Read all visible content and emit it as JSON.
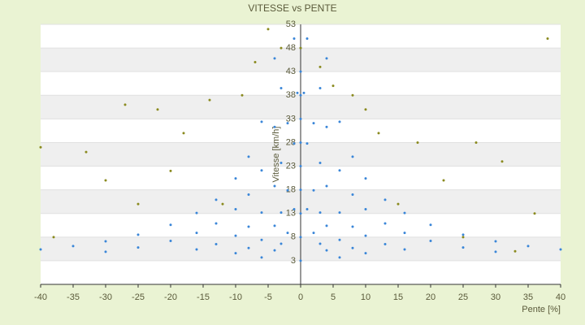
{
  "chart_data": {
    "type": "scatter",
    "title": "VITESSE vs PENTE",
    "xlabel": "Pente [%]",
    "ylabel": "Vitesse [km/h]",
    "xlim": [
      -40,
      40
    ],
    "xticks": [
      -40,
      -35,
      -30,
      -25,
      -20,
      -15,
      -10,
      -5,
      0,
      5,
      10,
      15,
      20,
      25,
      30,
      35,
      40
    ],
    "ylim": [
      -2,
      53
    ],
    "yticks": [
      3,
      8,
      13,
      18,
      23,
      28,
      33,
      38,
      43,
      48,
      53
    ],
    "grid": true,
    "series": [
      {
        "color": "#3a86d8",
        "x": [
          -1,
          -2,
          -3,
          -4,
          -6,
          -0.5,
          -1,
          -2,
          -3,
          -4,
          -6,
          -8,
          -10,
          -1,
          -2,
          -3,
          -4,
          -6,
          -8,
          -10,
          -13,
          -16,
          -3,
          -4,
          -6,
          -8,
          -10,
          -13,
          -16,
          -20,
          -25,
          -30,
          -4,
          -6,
          -8,
          -10,
          -13,
          -16,
          -20,
          -25,
          -30,
          -35,
          -40,
          1,
          2,
          3,
          4,
          6,
          0.5,
          1,
          2,
          3,
          4,
          6,
          8,
          10,
          1,
          2,
          3,
          4,
          6,
          8,
          10,
          13,
          16,
          3,
          4,
          6,
          8,
          10,
          13,
          16,
          20,
          25,
          30,
          4,
          6,
          8,
          10,
          13,
          16,
          20,
          25,
          30,
          35,
          40,
          0,
          0,
          0,
          0,
          0,
          0,
          0,
          0,
          0,
          0
        ],
        "values": [
          13.9,
          8.9,
          6.6,
          5.2,
          3.7,
          38.5,
          27.8,
          17.9,
          13.2,
          10.4,
          7.4,
          5.7,
          4.6,
          50,
          32.1,
          23.7,
          18.8,
          13.2,
          10.2,
          8.3,
          6.5,
          5.4,
          39.5,
          31.3,
          22.1,
          17,
          13.9,
          10.9,
          8.9,
          7.2,
          5.8,
          4.9,
          45.8,
          32.4,
          25,
          20.4,
          15.9,
          13.1,
          10.6,
          8.5,
          7.1,
          6.1,
          5.4,
          13.9,
          8.9,
          6.6,
          5.2,
          3.7,
          38.5,
          27.8,
          17.9,
          13.2,
          10.4,
          7.4,
          5.7,
          4.6,
          50,
          32.1,
          23.7,
          18.8,
          13.2,
          10.2,
          8.3,
          6.5,
          5.4,
          39.5,
          31.3,
          22.1,
          17,
          13.9,
          10.9,
          8.9,
          7.2,
          5.8,
          4.9,
          45.8,
          32.4,
          25,
          20.4,
          15.9,
          13.1,
          10.6,
          8.5,
          7.1,
          6.1,
          5.4,
          3,
          8,
          13,
          18,
          23,
          28,
          33,
          38,
          43,
          48
        ]
      },
      {
        "color": "#8a8a1e",
        "x": [
          -40,
          -33,
          -27,
          -22,
          -18,
          -14,
          -7,
          -5,
          -3,
          0,
          3,
          8,
          12,
          18,
          22,
          27,
          31,
          36,
          38,
          -30,
          -25,
          -12,
          15,
          33,
          -38,
          25,
          5,
          -9,
          10,
          -20
        ],
        "values": [
          27,
          26,
          36,
          35,
          30,
          37,
          45,
          52,
          48,
          48,
          44,
          38,
          30,
          28,
          20,
          28,
          24,
          13,
          50,
          20,
          15,
          15,
          15,
          5,
          8,
          8,
          40,
          38,
          35,
          22
        ]
      }
    ]
  }
}
